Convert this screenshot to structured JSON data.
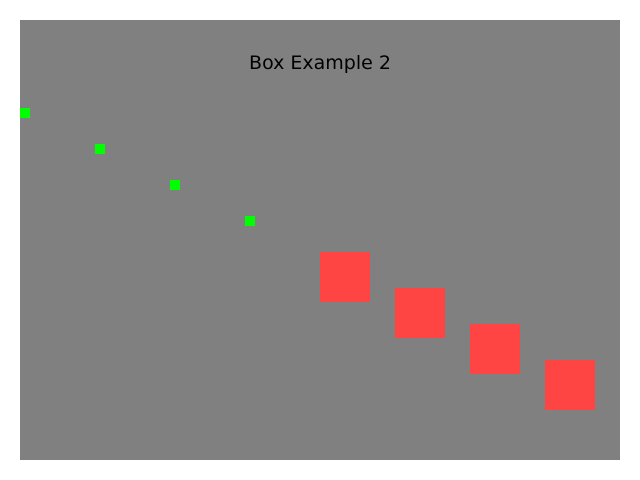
{
  "title": "Box Example 2",
  "colors": {
    "background": "#808080",
    "small_box": "#00ff00",
    "large_box": "#ff4444"
  },
  "small_boxes": 4,
  "large_boxes": 4
}
